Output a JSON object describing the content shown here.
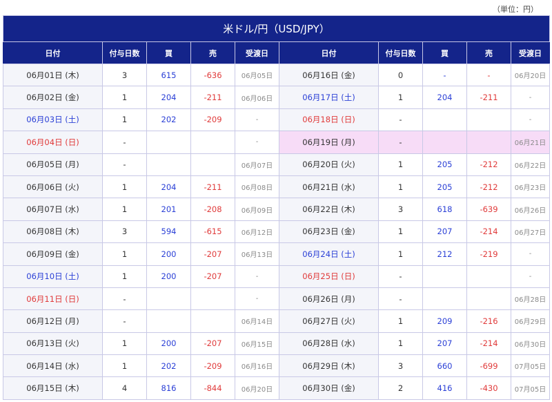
{
  "unit_label": "（単位：円）",
  "title": "米ドル/円（USD/JPY）",
  "headers": [
    "日付",
    "付与日数",
    "買",
    "売",
    "受渡日",
    "日付",
    "付与日数",
    "買",
    "売",
    "受渡日"
  ],
  "left": [
    {
      "date": "06月01日 (木)",
      "day": "wd",
      "days": "3",
      "buy": "615",
      "sell": "-636",
      "delivery": "06月05日"
    },
    {
      "date": "06月02日 (金)",
      "day": "wd",
      "days": "1",
      "buy": "204",
      "sell": "-211",
      "delivery": "06月06日"
    },
    {
      "date": "06月03日 (土)",
      "day": "sat",
      "days": "1",
      "buy": "202",
      "sell": "-209",
      "delivery": "-"
    },
    {
      "date": "06月04日 (日)",
      "day": "sun",
      "days": "-",
      "buy": "",
      "sell": "",
      "delivery": "-"
    },
    {
      "date": "06月05日 (月)",
      "day": "wd",
      "days": "-",
      "buy": "",
      "sell": "",
      "delivery": "06月07日"
    },
    {
      "date": "06月06日 (火)",
      "day": "wd",
      "days": "1",
      "buy": "204",
      "sell": "-211",
      "delivery": "06月08日"
    },
    {
      "date": "06月07日 (水)",
      "day": "wd",
      "days": "1",
      "buy": "201",
      "sell": "-208",
      "delivery": "06月09日"
    },
    {
      "date": "06月08日 (木)",
      "day": "wd",
      "days": "3",
      "buy": "594",
      "sell": "-615",
      "delivery": "06月12日"
    },
    {
      "date": "06月09日 (金)",
      "day": "wd",
      "days": "1",
      "buy": "200",
      "sell": "-207",
      "delivery": "06月13日"
    },
    {
      "date": "06月10日 (土)",
      "day": "sat",
      "days": "1",
      "buy": "200",
      "sell": "-207",
      "delivery": "-"
    },
    {
      "date": "06月11日 (日)",
      "day": "sun",
      "days": "-",
      "buy": "",
      "sell": "",
      "delivery": "-"
    },
    {
      "date": "06月12日 (月)",
      "day": "wd",
      "days": "-",
      "buy": "",
      "sell": "",
      "delivery": "06月14日"
    },
    {
      "date": "06月13日 (火)",
      "day": "wd",
      "days": "1",
      "buy": "200",
      "sell": "-207",
      "delivery": "06月15日"
    },
    {
      "date": "06月14日 (水)",
      "day": "wd",
      "days": "1",
      "buy": "202",
      "sell": "-209",
      "delivery": "06月16日"
    },
    {
      "date": "06月15日 (木)",
      "day": "wd",
      "days": "4",
      "buy": "816",
      "sell": "-844",
      "delivery": "06月20日"
    }
  ],
  "right": [
    {
      "date": "06月16日 (金)",
      "day": "wd",
      "days": "0",
      "buy": "-",
      "sell": "-",
      "delivery": "06月20日"
    },
    {
      "date": "06月17日 (土)",
      "day": "sat",
      "days": "1",
      "buy": "204",
      "sell": "-211",
      "delivery": "-"
    },
    {
      "date": "06月18日 (日)",
      "day": "sun",
      "days": "-",
      "buy": "",
      "sell": "",
      "delivery": "-"
    },
    {
      "date": "06月19日 (月)",
      "day": "wd",
      "days": "-",
      "buy": "",
      "sell": "",
      "delivery": "06月21日",
      "highlight": true
    },
    {
      "date": "06月20日 (火)",
      "day": "wd",
      "days": "1",
      "buy": "205",
      "sell": "-212",
      "delivery": "06月22日"
    },
    {
      "date": "06月21日 (水)",
      "day": "wd",
      "days": "1",
      "buy": "205",
      "sell": "-212",
      "delivery": "06月23日"
    },
    {
      "date": "06月22日 (木)",
      "day": "wd",
      "days": "3",
      "buy": "618",
      "sell": "-639",
      "delivery": "06月26日"
    },
    {
      "date": "06月23日 (金)",
      "day": "wd",
      "days": "1",
      "buy": "207",
      "sell": "-214",
      "delivery": "06月27日"
    },
    {
      "date": "06月24日 (土)",
      "day": "sat",
      "days": "1",
      "buy": "212",
      "sell": "-219",
      "delivery": "-"
    },
    {
      "date": "06月25日 (日)",
      "day": "sun",
      "days": "-",
      "buy": "",
      "sell": "",
      "delivery": "-"
    },
    {
      "date": "06月26日 (月)",
      "day": "wd",
      "days": "-",
      "buy": "",
      "sell": "",
      "delivery": "06月28日"
    },
    {
      "date": "06月27日 (火)",
      "day": "wd",
      "days": "1",
      "buy": "209",
      "sell": "-216",
      "delivery": "06月29日"
    },
    {
      "date": "06月28日 (水)",
      "day": "wd",
      "days": "1",
      "buy": "207",
      "sell": "-214",
      "delivery": "06月30日"
    },
    {
      "date": "06月29日 (木)",
      "day": "wd",
      "days": "3",
      "buy": "660",
      "sell": "-699",
      "delivery": "07月05日"
    },
    {
      "date": "06月30日 (金)",
      "day": "wd",
      "days": "2",
      "buy": "416",
      "sell": "-430",
      "delivery": "07月05日"
    }
  ]
}
